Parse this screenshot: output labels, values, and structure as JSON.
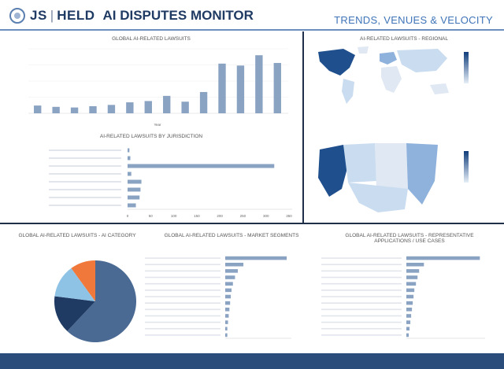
{
  "header": {
    "company": "JS",
    "company2": "HELD",
    "app_title": "AI DISPUTES MONITOR",
    "section_title": "TRENDS, VENUES & VELOCITY"
  },
  "panels": {
    "global_lawsuits": "GLOBAL AI-RELATED LAWSUITS",
    "regional": "AI-RELATED LAWSUITS - REGIONAL",
    "jurisdiction": "AI-RELATED LAWSUITS BY JURISDICTION",
    "category": "GLOBAL AI-RELATED LAWSUITS - AI CATEGORY",
    "segments": "GLOBAL AI-RELATED LAWSUITS - MARKET SEGMENTS",
    "use_cases": "GLOBAL AI-RELATED LAWSUITS - REPRESENTATIVE APPLICATIONS / USE CASES"
  },
  "chart_data": [
    {
      "type": "bar",
      "title": "GLOBAL AI-RELATED LAWSUITS",
      "xlabel": "Year",
      "ylabel": "",
      "ylim": [
        0,
        100
      ],
      "values": [
        12,
        10,
        9,
        11,
        13,
        17,
        19,
        27,
        18,
        33,
        77,
        74,
        90,
        78
      ]
    },
    {
      "type": "bar",
      "title": "AI-RELATED LAWSUITS BY JURISDICTION",
      "orientation": "horizontal",
      "xlim": [
        0,
        350
      ],
      "xticks": [
        "0",
        "50",
        "100",
        "150",
        "200",
        "250",
        "300",
        "350"
      ],
      "values": [
        4,
        6,
        318,
        8,
        30,
        28,
        26,
        18
      ]
    },
    {
      "type": "pie",
      "title": "GLOBAL AI-RELATED LAWSUITS - AI CATEGORY",
      "values": [
        62,
        15,
        13,
        10
      ],
      "colors": [
        "#4a6a94",
        "#1f3a63",
        "#8ec3e6",
        "#f0783a"
      ]
    },
    {
      "type": "bar",
      "title": "GLOBAL AI-RELATED LAWSUITS - MARKET SEGMENTS",
      "orientation": "horizontal",
      "values": [
        88,
        26,
        18,
        14,
        11,
        9,
        8,
        7,
        6,
        5,
        4,
        3,
        3
      ]
    },
    {
      "type": "bar",
      "title": "GLOBAL AI-RELATED LAWSUITS - REPRESENTATIVE APPLICATIONS / USE CASES",
      "orientation": "horizontal",
      "values": [
        92,
        22,
        16,
        14,
        12,
        10,
        9,
        8,
        7,
        6,
        5,
        4,
        3
      ]
    }
  ],
  "colors": {
    "bar": "#8aa3c3",
    "accent": "#3f74b8",
    "dark": "#1f3a63",
    "map_light": "#c9dcf0",
    "map_dark": "#1f4f8c"
  },
  "footer": {
    "note": "",
    "right": ""
  }
}
